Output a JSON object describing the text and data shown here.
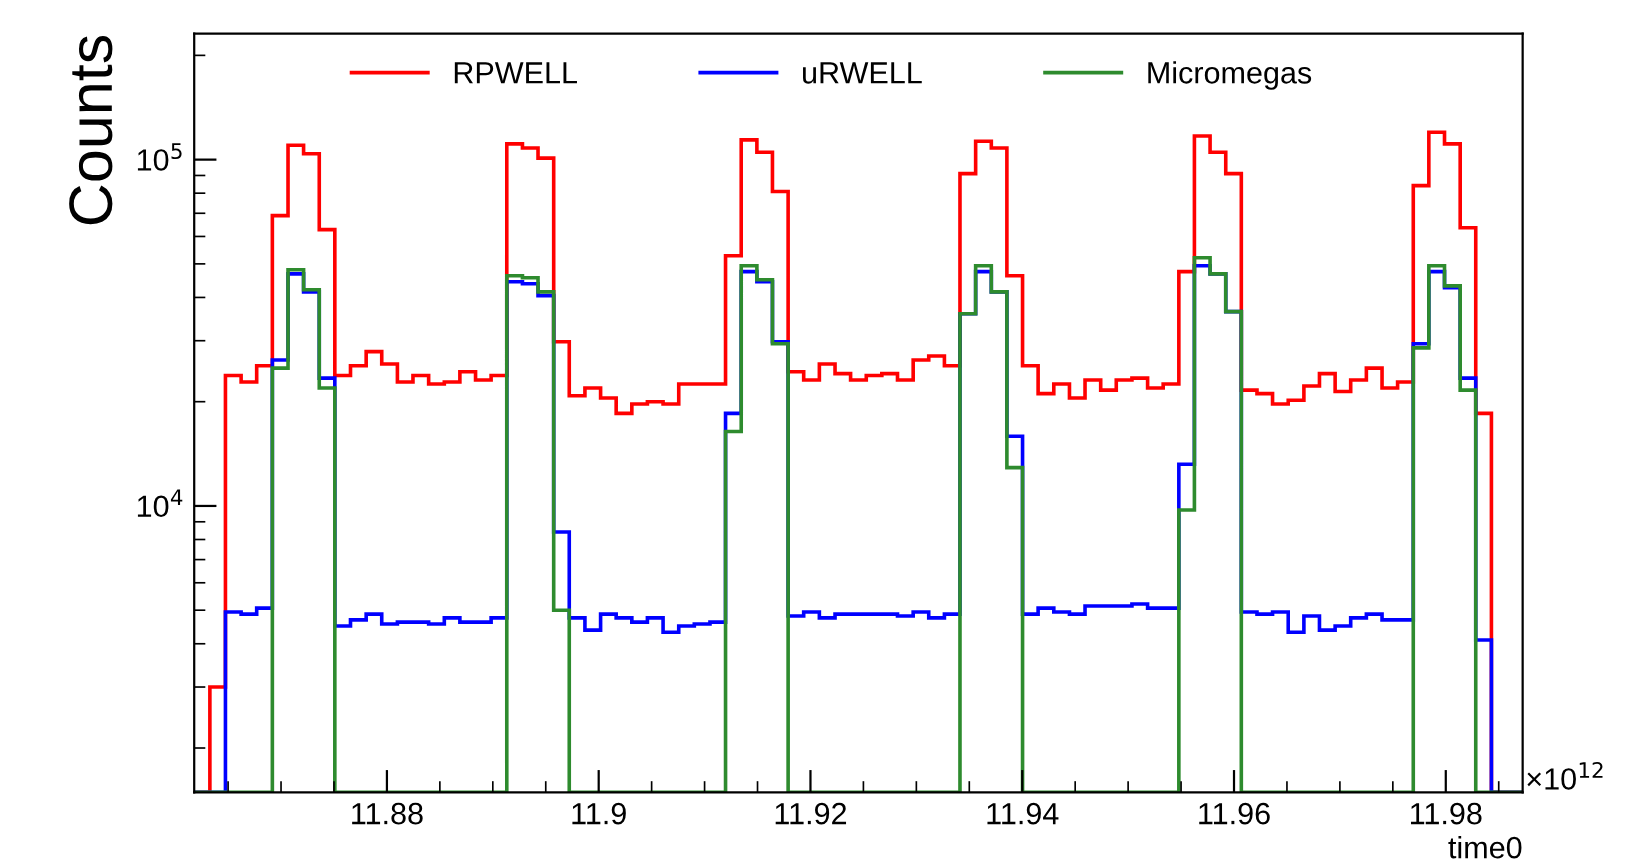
{
  "chart_data": {
    "type": "histogram",
    "ylabel": "Counts",
    "xlabel": "time0",
    "bins": [
      11.8618,
      11.86328,
      11.86475,
      11.86623,
      11.8677,
      11.86918,
      11.87066,
      11.87213,
      11.87361,
      11.87508,
      11.87656,
      11.87804,
      11.87951,
      11.88099,
      11.88246,
      11.88394,
      11.88542,
      11.88689,
      11.88837,
      11.88984,
      11.89132,
      11.8928,
      11.89427,
      11.89575,
      11.89722,
      11.8987,
      11.90018,
      11.90165,
      11.90313,
      11.9046,
      11.90608,
      11.90756,
      11.90903,
      11.91051,
      11.91198,
      11.91346,
      11.91494,
      11.91641,
      11.91789,
      11.91936,
      11.92084,
      11.92232,
      11.92379,
      11.92527,
      11.92674,
      11.92822,
      11.9297,
      11.93117,
      11.93265,
      11.93412,
      11.9356,
      11.93708,
      11.93855,
      11.94003,
      11.9415,
      11.94298,
      11.94446,
      11.94593,
      11.94741,
      11.94888,
      11.95036,
      11.95184,
      11.95331,
      11.95479,
      11.95626,
      11.95774,
      11.95922,
      11.96069,
      11.96217,
      11.96364,
      11.96512,
      11.9666,
      11.96807,
      11.96955,
      11.97102,
      11.9725,
      11.97398,
      11.97545,
      11.97693,
      11.9784,
      11.97988,
      11.98136,
      11.98283,
      11.98431,
      11.98578,
      11.98726
    ],
    "series": [
      {
        "name": "RPWELL",
        "color": "#ff0000",
        "values": [
          null,
          3000,
          23800,
          22800,
          25400,
          68900,
          110000,
          104000,
          62800,
          23800,
          25400,
          27900,
          25700,
          22800,
          23800,
          22500,
          22800,
          24400,
          23100,
          23800,
          111000,
          108000,
          101000,
          29800,
          20800,
          21900,
          20500,
          18500,
          19700,
          20000,
          19700,
          22500,
          22500,
          22500,
          52800,
          114000,
          105000,
          80900,
          24400,
          23100,
          25700,
          24100,
          23100,
          23800,
          24100,
          23100,
          26400,
          27100,
          25400,
          91100,
          113000,
          108000,
          46200,
          25400,
          21100,
          22500,
          20500,
          23100,
          21600,
          23100,
          23400,
          21900,
          22500,
          47500,
          117000,
          105000,
          91100,
          21600,
          21100,
          19700,
          20200,
          22200,
          24100,
          21400,
          23100,
          25000,
          21900,
          22800,
          84100,
          120000,
          111000,
          63600,
          18500,
          null,
          null
        ]
      },
      {
        "name": "uRWELL",
        "color": "#0000ff",
        "values": [
          null,
          null,
          4940,
          4870,
          5070,
          26400,
          46800,
          41500,
          23400,
          4500,
          4690,
          4870,
          4560,
          4620,
          4620,
          4560,
          4750,
          4620,
          4620,
          4750,
          44400,
          43800,
          40500,
          8410,
          4750,
          4380,
          4870,
          4750,
          4620,
          4750,
          4320,
          4500,
          4560,
          4620,
          18500,
          47500,
          44400,
          29800,
          4810,
          4940,
          4750,
          4870,
          4870,
          4870,
          4870,
          4810,
          4940,
          4750,
          4870,
          35900,
          47500,
          41500,
          15900,
          4870,
          5070,
          4940,
          4870,
          5140,
          5140,
          5140,
          5210,
          5070,
          5070,
          13200,
          49400,
          46800,
          36400,
          4940,
          4870,
          4940,
          4320,
          4810,
          4380,
          4500,
          4750,
          4870,
          4690,
          4690,
          29400,
          47500,
          42700,
          23400,
          4100,
          null,
          null
        ]
      },
      {
        "name": "Micromegas",
        "color": "#2e8b2e",
        "values": [
          null,
          null,
          null,
          null,
          null,
          25000,
          48100,
          42100,
          21900,
          null,
          null,
          null,
          null,
          null,
          null,
          null,
          null,
          null,
          null,
          null,
          46200,
          45600,
          41500,
          5000,
          null,
          null,
          null,
          null,
          null,
          null,
          null,
          null,
          null,
          null,
          16400,
          49400,
          45000,
          29400,
          null,
          null,
          null,
          null,
          null,
          null,
          null,
          null,
          null,
          null,
          null,
          35900,
          49400,
          41500,
          12900,
          null,
          null,
          null,
          null,
          null,
          null,
          null,
          null,
          null,
          null,
          9730,
          52100,
          46800,
          36400,
          null,
          null,
          null,
          null,
          null,
          null,
          null,
          null,
          null,
          null,
          null,
          28600,
          49400,
          43200,
          21600,
          null,
          null,
          null
        ]
      }
    ],
    "xlim": [
      11.8618,
      11.98726
    ],
    "xticks": [
      11.88,
      11.9,
      11.92,
      11.94,
      11.96,
      11.98
    ],
    "ylim": [
      1490,
      231000
    ],
    "yticks": [
      {
        "value": 10000,
        "label": "10$^{4}$"
      },
      {
        "value": 100000,
        "label": "10$^{5}$"
      }
    ],
    "log": "y",
    "grid": false,
    "legend": "top",
    "annotations": [
      "×10$^{12}$"
    ]
  }
}
